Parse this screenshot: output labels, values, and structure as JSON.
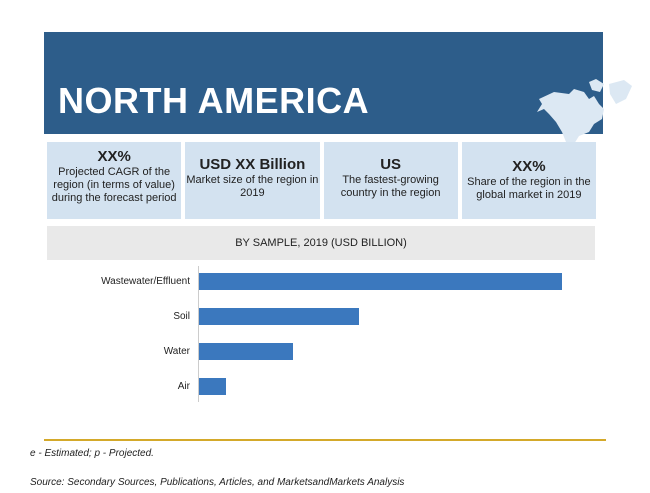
{
  "header": {
    "title": "NORTH AMERICA"
  },
  "cards": [
    {
      "value": "XX%",
      "desc": "Projected CAGR of the region (in terms of value) during the forecast period"
    },
    {
      "value": "USD XX Billion",
      "desc": "Market size of the region in 2019"
    },
    {
      "value": "US",
      "desc": "The fastest-growing country in the region"
    },
    {
      "value": "XX%",
      "desc": "Share of the region in the global market in 2019"
    }
  ],
  "chart_data": {
    "type": "bar",
    "orientation": "horizontal",
    "title": "BY SAMPLE,  2019 (USD BILLION)",
    "categories": [
      "Wastewater/Effluent",
      "Soil",
      "Water",
      "Air"
    ],
    "values": [
      100,
      44,
      26,
      7.5
    ],
    "xlabel": "",
    "ylabel": "",
    "xlim": [
      0,
      100
    ]
  },
  "footer": {
    "note": "e - Estimated; p - Projected.",
    "source": "Source: Secondary Sources, Publications, Articles, and MarketsandMarkets Analysis"
  },
  "colors": {
    "banner": "#2d5d8a",
    "card": "#d3e2f0",
    "bar": "#3b78be",
    "rule": "#d4a92a"
  }
}
